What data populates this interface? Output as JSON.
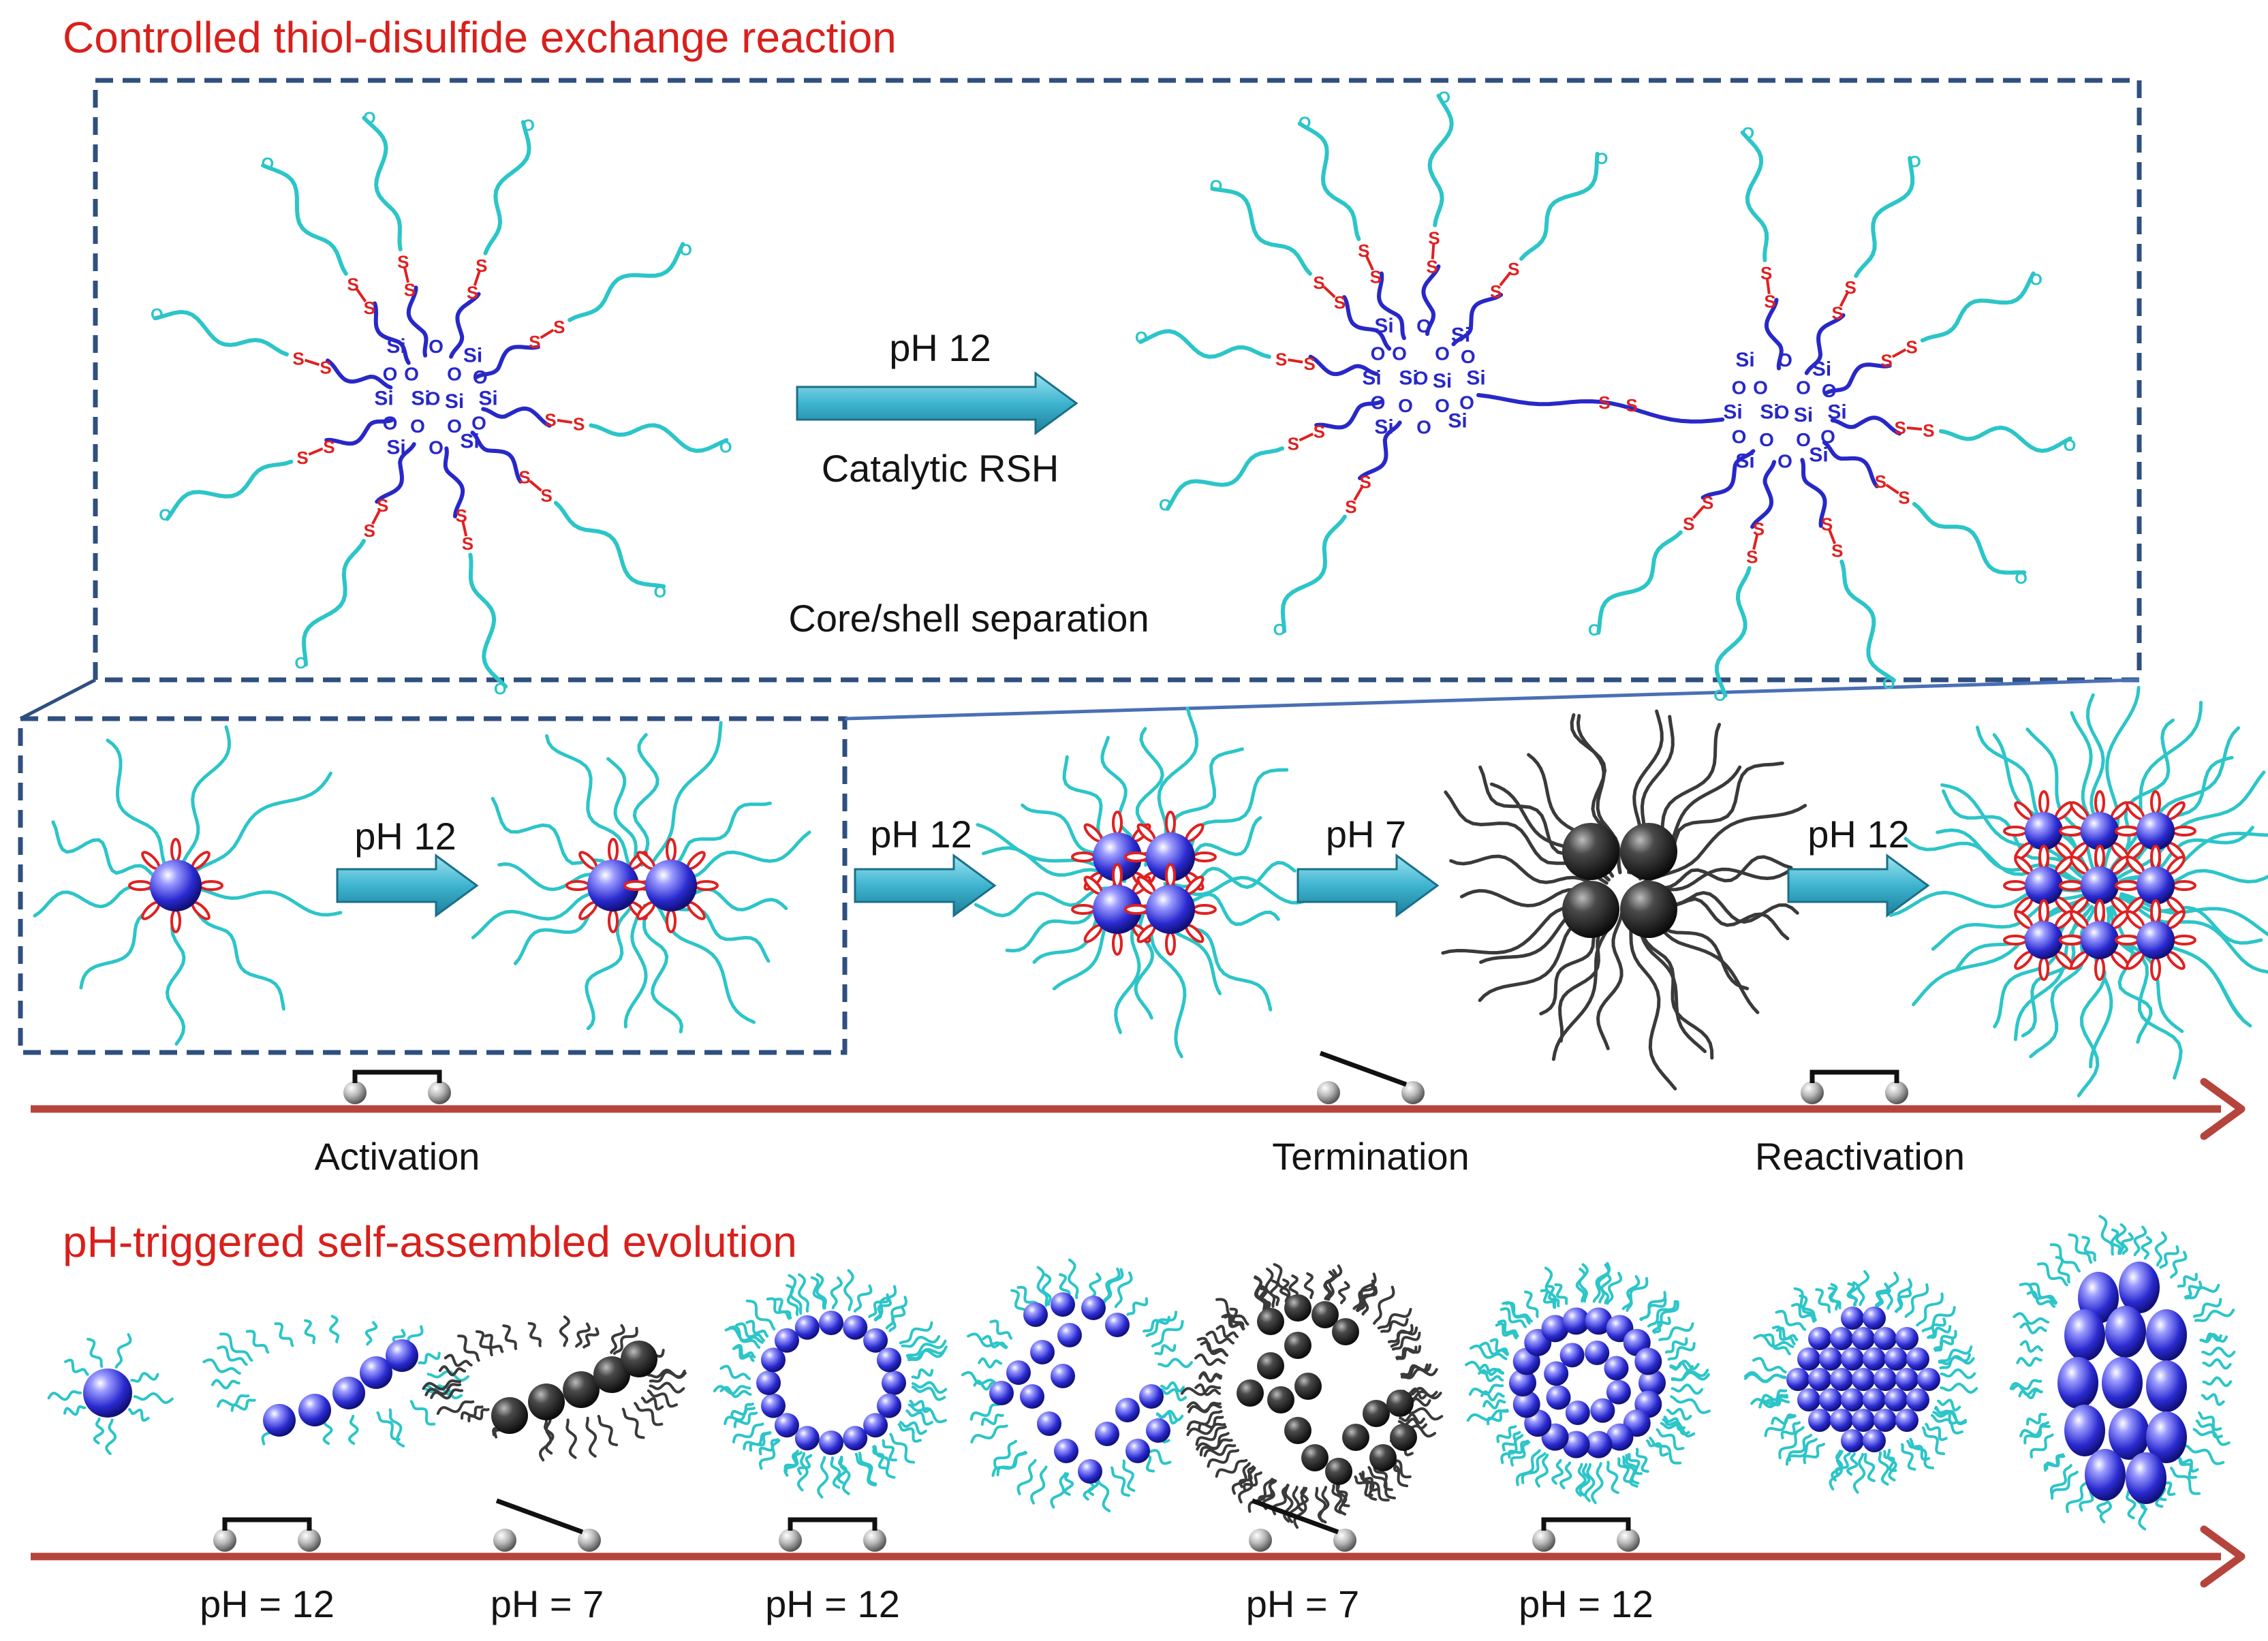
{
  "section1": {
    "title": "Controlled thiol-disulfide exchange reaction",
    "arrow_condition": "pH 12",
    "arrow_catalyst": "Catalytic RSH",
    "caption": "Core/shell separation",
    "atoms": {
      "silicon": "Si",
      "oxygen": "O",
      "sulfur": "S"
    }
  },
  "process": {
    "steps": [
      {
        "condition": "pH 12"
      },
      {
        "condition": "pH 12"
      },
      {
        "condition": "pH 7"
      },
      {
        "condition": "pH 12"
      }
    ],
    "switches": [
      {
        "label": "Activation",
        "state": "closed"
      },
      {
        "label": "Termination",
        "state": "open"
      },
      {
        "label": "Reactivation",
        "state": "closed"
      }
    ]
  },
  "section2": {
    "title": "pH-triggered self-assembled evolution",
    "stages": [
      {
        "form": "single-particle",
        "active": true
      },
      {
        "form": "short-chain",
        "active": true
      },
      {
        "form": "short-chain",
        "active": false
      },
      {
        "form": "ring",
        "active": true
      },
      {
        "form": "branched-network",
        "active": true
      },
      {
        "form": "branched-network",
        "active": false
      },
      {
        "form": "double-ring",
        "active": true
      },
      {
        "form": "filled-cluster",
        "active": true
      },
      {
        "form": "large-aggregate",
        "active": true
      }
    ],
    "switches": [
      {
        "label": "pH = 12",
        "state": "closed"
      },
      {
        "label": "pH = 7",
        "state": "open"
      },
      {
        "label": "pH = 12",
        "state": "closed"
      },
      {
        "label": "pH = 7",
        "state": "open"
      },
      {
        "label": "pH = 12",
        "state": "closed"
      }
    ]
  },
  "colors": {
    "title_red": "#d8201c",
    "core_blue": "#2828c8",
    "shell_cyan": "#2cc5c8",
    "disulfide_red": "#e02020",
    "arrow_teal": "#3eb4d0",
    "timeline_red": "#b5443c",
    "frame_navy": "#2f4f7f",
    "inactive_gray": "#3a3a3a"
  }
}
